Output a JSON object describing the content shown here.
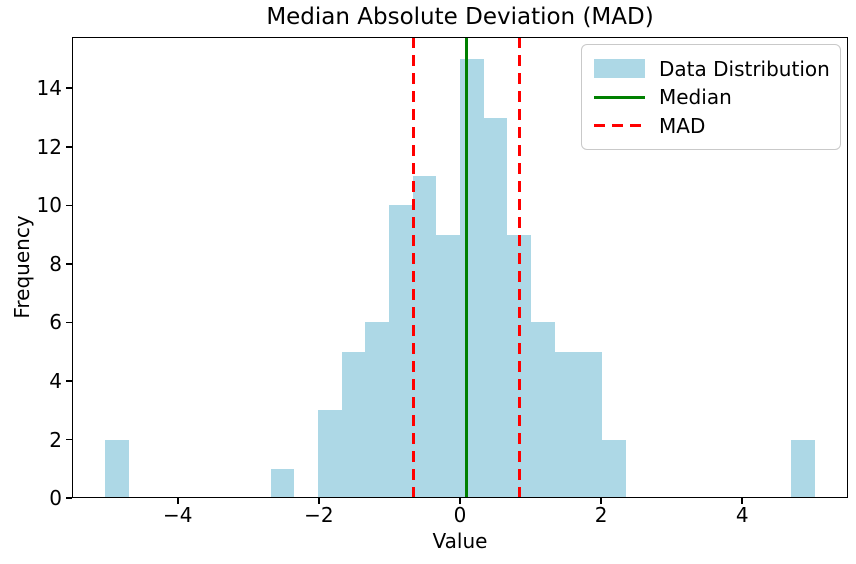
{
  "chart_data": {
    "type": "bar",
    "subtype": "histogram",
    "title": "Median Absolute Deviation (MAD)",
    "xlabel": "Value",
    "ylabel": "Frequency",
    "xlim": [
      -5.5,
      5.5
    ],
    "ylim": [
      0,
      15.75
    ],
    "grid": false,
    "legend_position": "upper right",
    "bar_color": "#add8e6",
    "axis_color": "#000000",
    "bin_width": 0.3353,
    "bins": [
      {
        "x0": -5.03,
        "count": 2
      },
      {
        "x0": -2.683,
        "count": 1
      },
      {
        "x0": -2.012,
        "count": 3
      },
      {
        "x0": -1.677,
        "count": 5
      },
      {
        "x0": -1.342,
        "count": 6
      },
      {
        "x0": -1.006,
        "count": 10
      },
      {
        "x0": -0.671,
        "count": 11
      },
      {
        "x0": -0.336,
        "count": 9
      },
      {
        "x0": -0.001,
        "count": 15
      },
      {
        "x0": 0.335,
        "count": 13
      },
      {
        "x0": 0.67,
        "count": 9
      },
      {
        "x0": 1.005,
        "count": 6
      },
      {
        "x0": 1.34,
        "count": 5
      },
      {
        "x0": 1.676,
        "count": 5
      },
      {
        "x0": 2.011,
        "count": 2
      },
      {
        "x0": 4.694,
        "count": 2
      }
    ],
    "median_line": {
      "x": 0.095,
      "color": "#008000",
      "style": "solid"
    },
    "mad_lines": {
      "x": [
        -0.66,
        0.84
      ],
      "color": "#ff0000",
      "style": "dashed"
    },
    "x_ticks": [
      {
        "v": -4,
        "label": "−4"
      },
      {
        "v": -2,
        "label": "−2"
      },
      {
        "v": 0,
        "label": "0"
      },
      {
        "v": 2,
        "label": "2"
      },
      {
        "v": 4,
        "label": "4"
      }
    ],
    "y_ticks": [
      {
        "v": 0,
        "label": "0"
      },
      {
        "v": 2,
        "label": "2"
      },
      {
        "v": 4,
        "label": "4"
      },
      {
        "v": 6,
        "label": "6"
      },
      {
        "v": 8,
        "label": "8"
      },
      {
        "v": 10,
        "label": "10"
      },
      {
        "v": 12,
        "label": "12"
      },
      {
        "v": 14,
        "label": "14"
      }
    ],
    "legend_items": [
      {
        "label": "Data Distribution",
        "swatch": "patch",
        "color": "#add8e6"
      },
      {
        "label": "Median",
        "swatch": "line",
        "color": "#008000"
      },
      {
        "label": "MAD",
        "swatch": "dashed-line",
        "color": "#ff0000"
      }
    ]
  }
}
